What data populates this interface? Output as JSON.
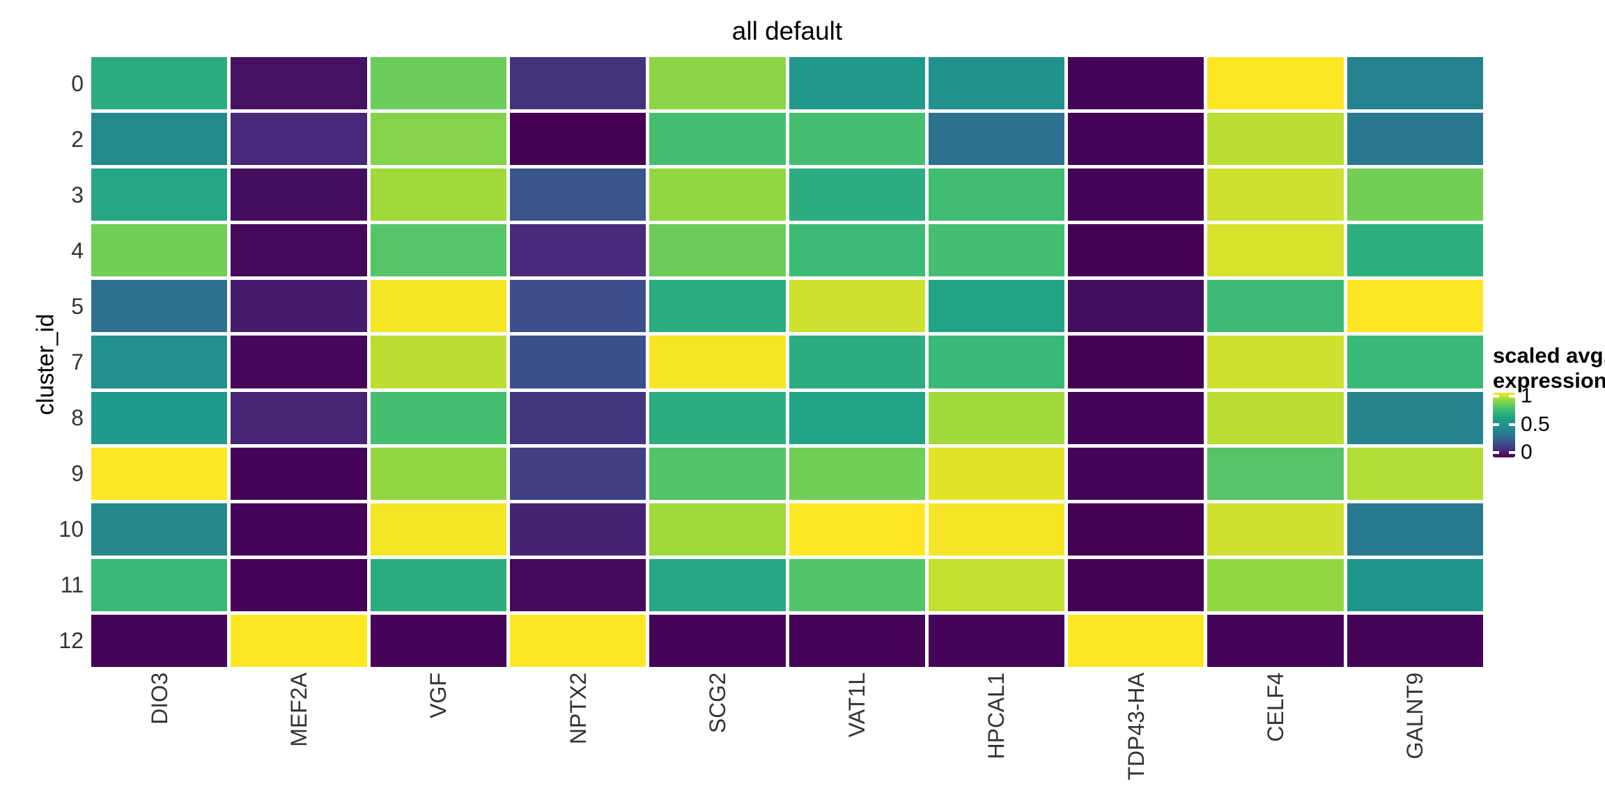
{
  "title": "all default",
  "y_axis": {
    "title": "cluster_id"
  },
  "legend": {
    "title_line1": "scaled avg.",
    "title_line2": "expression",
    "tick_labels": [
      "1",
      "0.5",
      "0"
    ],
    "tick_values": [
      1,
      0.5,
      0
    ]
  },
  "colors": {
    "background": "#ffffff",
    "axis_text": "#333333",
    "title_text": "#000000",
    "viridis_anchors": [
      [
        0.0,
        "#440154"
      ],
      [
        0.1,
        "#482878"
      ],
      [
        0.2,
        "#3e4989"
      ],
      [
        0.3,
        "#31688e"
      ],
      [
        0.4,
        "#26828e"
      ],
      [
        0.5,
        "#21918c"
      ],
      [
        0.6,
        "#1f9e89"
      ],
      [
        0.7,
        "#35b779"
      ],
      [
        0.8,
        "#5ec962"
      ],
      [
        0.9,
        "#9fda3a"
      ],
      [
        1.0,
        "#fde725"
      ]
    ]
  },
  "chart_data": {
    "type": "heatmap",
    "title": "all default",
    "ylabel": "cluster_id",
    "legend_title": "scaled avg. expression",
    "colormap": "viridis",
    "value_range": [
      0,
      1
    ],
    "rows": [
      "0",
      "2",
      "3",
      "4",
      "5",
      "7",
      "8",
      "9",
      "10",
      "11",
      "12"
    ],
    "columns": [
      "DIO3",
      "MEF2A",
      "VGF",
      "NPTX2",
      "SCG2",
      "VAT1L",
      "HPCAL1",
      "TDP43-HA",
      "CELF4",
      "GALNT9"
    ],
    "values": [
      [
        0.65,
        0.04,
        0.82,
        0.13,
        0.87,
        0.56,
        0.5,
        0.01,
        1.0,
        0.4
      ],
      [
        0.45,
        0.1,
        0.86,
        0.0,
        0.74,
        0.74,
        0.34,
        0.01,
        0.93,
        0.36
      ],
      [
        0.63,
        0.03,
        0.9,
        0.24,
        0.88,
        0.66,
        0.73,
        0.01,
        0.95,
        0.83
      ],
      [
        0.83,
        0.02,
        0.78,
        0.11,
        0.82,
        0.72,
        0.74,
        0.0,
        0.96,
        0.67
      ],
      [
        0.33,
        0.07,
        0.99,
        0.21,
        0.66,
        0.95,
        0.62,
        0.03,
        0.72,
        1.0
      ],
      [
        0.49,
        0.015,
        0.93,
        0.22,
        0.99,
        0.66,
        0.71,
        0.0,
        0.95,
        0.71
      ],
      [
        0.57,
        0.09,
        0.74,
        0.14,
        0.66,
        0.62,
        0.9,
        0.01,
        0.93,
        0.41
      ],
      [
        1.0,
        0.01,
        0.88,
        0.17,
        0.77,
        0.83,
        0.97,
        0.01,
        0.78,
        0.92
      ],
      [
        0.44,
        0.008,
        0.99,
        0.085,
        0.9,
        1.0,
        0.99,
        0.0,
        0.95,
        0.37
      ],
      [
        0.71,
        0.005,
        0.66,
        0.02,
        0.63,
        0.77,
        0.94,
        0.0,
        0.88,
        0.53
      ],
      [
        0.01,
        1.0,
        0.005,
        1.0,
        0.005,
        0.005,
        0.01,
        1.0,
        0.005,
        0.01
      ]
    ]
  }
}
